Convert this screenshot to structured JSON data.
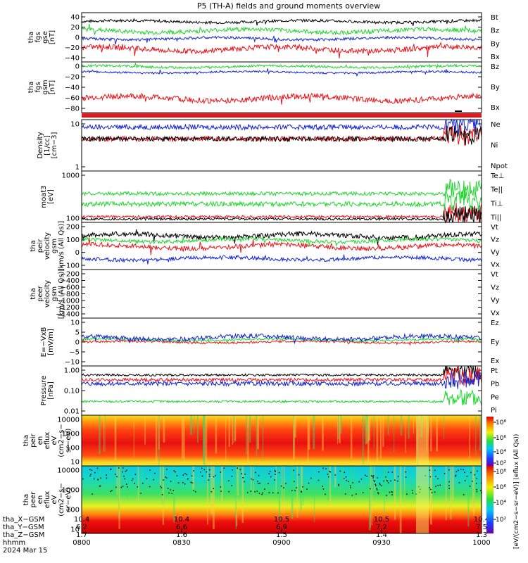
{
  "title": "P5 (TH-A) fields and ground moments overview",
  "colors": {
    "black": "#000000",
    "red": "#e8141a",
    "green": "#22d630",
    "blue": "#1426d2"
  },
  "chart_data": [
    {
      "type": "line",
      "panel": "fgs_gse",
      "ylabel_lines": [
        "tha",
        "fgs",
        "gse",
        "[nT]"
      ],
      "yticks": [
        "40",
        "20",
        "0",
        "−20",
        "−40"
      ],
      "ylim": [
        -45,
        50
      ],
      "series": [
        {
          "name": "Bt",
          "color": "black",
          "base": 33,
          "amp": 5
        },
        {
          "name": "Bz",
          "color": "red",
          "base": -20,
          "amp": 10
        },
        {
          "name": "By",
          "color": "green",
          "base": 15,
          "amp": 8
        },
        {
          "name": "Bx",
          "color": "blue",
          "base": 0,
          "amp": 5
        }
      ]
    },
    {
      "type": "line",
      "panel": "fgs_gsm",
      "ylabel_lines": [
        "tha",
        "fgs",
        "gsm",
        "[nT]"
      ],
      "yticks": [
        "0",
        "−20",
        "−40",
        "−60",
        "−80"
      ],
      "ylim": [
        -95,
        12
      ],
      "series": [
        {
          "name": "Bz",
          "color": "red",
          "base": -65,
          "amp": 12
        },
        {
          "name": "By",
          "color": "green",
          "base": 2,
          "amp": 5
        },
        {
          "name": "Bx",
          "color": "blue",
          "base": -10,
          "amp": 4
        }
      ]
    },
    {
      "type": "line",
      "panel": "density",
      "log": true,
      "ylabel_lines": [
        "Density",
        "[1/cc]",
        "[cm−3]"
      ],
      "yticks": [
        "10",
        "1"
      ],
      "ylim": [
        0.5,
        60
      ],
      "series": [
        {
          "name": "Ne",
          "color": "red",
          "base": 10,
          "amp": 0.2
        },
        {
          "name": "Ni",
          "color": "black",
          "base": 10,
          "amp": 0.2
        },
        {
          "name": "Npot",
          "color": "blue",
          "base": 30,
          "amp": 0.2
        }
      ]
    },
    {
      "type": "line",
      "panel": "temperature",
      "log": true,
      "ylabel_lines": [
        "moat3",
        "[eV]"
      ],
      "yticks": [
        "1000",
        "100"
      ],
      "ylim": [
        20,
        3000
      ],
      "series": [
        {
          "name": "Te⊥",
          "color": "red",
          "base": 35,
          "amp": 0.1
        },
        {
          "name": "Te||",
          "color": "black",
          "base": 28,
          "amp": 0.1
        },
        {
          "name": "Ti⊥",
          "color": "green",
          "base": 120,
          "amp": 0.2
        },
        {
          "name": "Ti||",
          "color": "green",
          "base": 330,
          "amp": 0.15
        }
      ]
    },
    {
      "type": "line",
      "panel": "peir_velocity",
      "ylabel_lines": [
        "tha",
        "peir",
        "velocity",
        "gsm",
        "[km/s (All Qs)]"
      ],
      "yticks": [
        "200",
        "100",
        "0",
        "−100"
      ],
      "ylim": [
        -130,
        260
      ],
      "series": [
        {
          "name": "Vt",
          "color": "black",
          "base": 150,
          "amp": 40
        },
        {
          "name": "Vz",
          "color": "red",
          "base": 60,
          "amp": 40
        },
        {
          "name": "Vy",
          "color": "green",
          "base": 110,
          "amp": 30
        },
        {
          "name": "Vx",
          "color": "blue",
          "base": -40,
          "amp": 30
        }
      ]
    },
    {
      "type": "line",
      "panel": "peer_velocity",
      "ylabel_lines": [
        "tha",
        "peer",
        "velocity",
        "gsm",
        "[km/s (All Qs)]"
      ],
      "yticks": [
        "−200",
        "−400",
        "−600",
        "−800",
        "−1000",
        "−1200",
        "−1400"
      ],
      "ylim": [
        -1450,
        0
      ],
      "series": [
        {
          "name": "Vt",
          "color": "black",
          "base": null,
          "amp": 0
        },
        {
          "name": "Vz",
          "color": "red",
          "base": null,
          "amp": 0
        },
        {
          "name": "Vy",
          "color": "green",
          "base": null,
          "amp": 0
        },
        {
          "name": "Vx",
          "color": "blue",
          "base": null,
          "amp": 0
        }
      ]
    },
    {
      "type": "line",
      "panel": "efield",
      "ylabel_lines": [
        "E=−VxB",
        "[mV/m]"
      ],
      "yticks": [
        "10",
        "5",
        "0",
        "−5",
        "−10"
      ],
      "ylim": [
        -11,
        11
      ],
      "series": [
        {
          "name": "Ez",
          "color": "red",
          "base": 0,
          "amp": 1
        },
        {
          "name": "Ey",
          "color": "green",
          "base": 1,
          "amp": 1
        },
        {
          "name": "Ex",
          "color": "blue",
          "base": 2,
          "amp": 2
        }
      ]
    },
    {
      "type": "line",
      "panel": "pressure",
      "log": true,
      "ylabel_lines": [
        "Pressure",
        "[nPa]"
      ],
      "yticks": [
        "1.00",
        "0.10",
        "0.01"
      ],
      "ylim": [
        0.007,
        1.3
      ],
      "series": [
        {
          "name": "Pt",
          "color": "black",
          "base": 0.5,
          "amp": 0.1
        },
        {
          "name": "Pb",
          "color": "red",
          "base": 0.3,
          "amp": 0.15
        },
        {
          "name": "Pe",
          "color": "green",
          "base": 0.03,
          "amp": 0.1
        },
        {
          "name": "Pi",
          "color": "blue",
          "base": 0.2,
          "amp": 0.2
        }
      ]
    },
    {
      "type": "heatmap",
      "panel": "peir_spectrogram",
      "ylabel_lines": [
        "tha",
        "peir",
        "en",
        "eflux",
        "eV",
        "(cm2−s−",
        "sr−eV)"
      ],
      "yticks": [
        "10000",
        "1000",
        "100",
        "10"
      ]
    },
    {
      "type": "heatmap",
      "panel": "peer_spectrogram",
      "ylabel_lines": [
        "tha",
        "peer",
        "en",
        "eflux",
        "eV",
        "(cm2−s−",
        "sr−eV)"
      ],
      "yticks": [
        "10000",
        "1000",
        "100",
        "10"
      ]
    }
  ],
  "colorbar": {
    "ticks": [
      "10⁸",
      "10⁶",
      "10⁴",
      "10²",
      "10⁸",
      "10⁶",
      "10⁴",
      "10²"
    ],
    "label": "[eV/(cm2−s−sr−eV)] (eflux (All Qs))"
  },
  "xaxis": {
    "row_labels": [
      "tha_X−GSM",
      "tha_Y−GSM",
      "tha_Z−GSM",
      "hhmm",
      "2024 Mar 15"
    ],
    "columns": [
      {
        "x": "10.4",
        "y": "6.2",
        "z": "1.7",
        "t": "0800"
      },
      {
        "x": "10.4",
        "y": "6.6",
        "z": "1.6",
        "t": "0830"
      },
      {
        "x": "10.5",
        "y": "6.9",
        "z": "1.5",
        "t": "0900"
      },
      {
        "x": "10.5",
        "y": "7.2",
        "z": "1.4",
        "t": "0930"
      },
      {
        "x": "10.4",
        "y": "7.5",
        "z": "1.3",
        "t": "1000"
      }
    ]
  }
}
